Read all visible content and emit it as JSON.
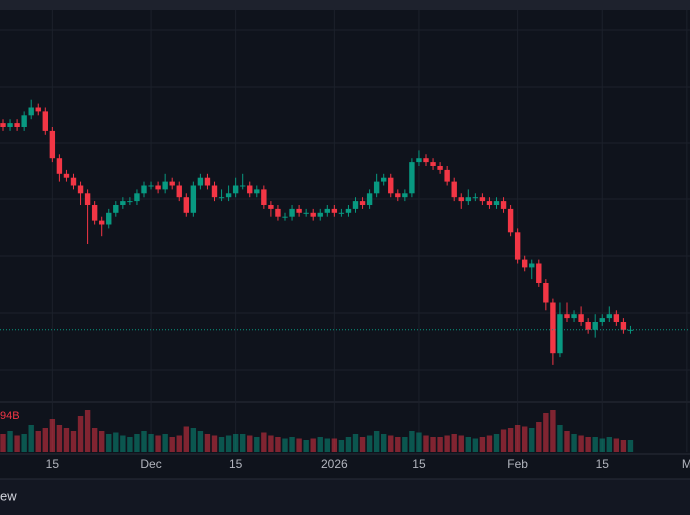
{
  "chart_data": {
    "type": "candlestick",
    "up_color": "#089981",
    "down_color": "#f23645",
    "ylim": [
      0,
      100
    ],
    "volume_lim": [
      0,
      150
    ],
    "volume_label": "94B",
    "footer_text": "ew",
    "categories": [
      null,
      null,
      null,
      null,
      null,
      null,
      null,
      "15",
      null,
      null,
      null,
      null,
      null,
      null,
      null,
      null,
      null,
      null,
      null,
      null,
      null,
      "Dec",
      null,
      null,
      null,
      null,
      null,
      null,
      null,
      null,
      null,
      null,
      null,
      "15",
      null,
      null,
      null,
      null,
      null,
      null,
      null,
      null,
      null,
      null,
      null,
      null,
      null,
      "2026",
      null,
      null,
      null,
      null,
      null,
      null,
      null,
      null,
      null,
      null,
      null,
      "15",
      null,
      null,
      null,
      null,
      null,
      null,
      null,
      null,
      null,
      null,
      null,
      null,
      null,
      "Feb",
      null,
      null,
      null,
      null,
      null,
      null,
      null,
      null,
      null,
      null,
      null,
      "15",
      null,
      null,
      null,
      null,
      null,
      null,
      null,
      null,
      null,
      null,
      null,
      "M"
    ],
    "open": [
      71,
      70,
      71,
      70,
      73,
      75,
      74,
      69,
      62,
      58,
      57,
      55,
      53,
      50,
      46,
      45,
      48,
      50,
      51,
      51,
      53,
      55,
      55,
      54,
      56,
      55,
      52,
      48,
      55,
      57,
      55,
      52,
      52,
      53,
      55,
      55,
      53,
      54,
      50,
      49,
      47,
      47,
      49,
      48,
      48,
      47,
      48,
      49,
      48,
      48,
      49,
      51,
      50,
      53,
      56,
      57,
      53,
      52,
      53,
      61,
      62,
      61,
      60,
      59,
      56,
      52,
      51,
      52,
      52,
      51,
      50,
      51,
      49,
      43,
      36,
      34,
      35,
      30,
      25,
      12,
      22,
      21,
      22,
      20,
      18,
      20,
      21,
      22,
      20,
      18,
      null,
      null,
      null,
      null,
      null,
      null,
      null,
      null
    ],
    "high": [
      72,
      72,
      72,
      74,
      77,
      76,
      75,
      70,
      63,
      59,
      58,
      56,
      54,
      51,
      47,
      49,
      51,
      52,
      52,
      54,
      56,
      56,
      56,
      58,
      57,
      56,
      53,
      56,
      58,
      58,
      56,
      54,
      55,
      57,
      58,
      56,
      55,
      55,
      51,
      50,
      48,
      50,
      50,
      49,
      49,
      49,
      50,
      50,
      49,
      50,
      52,
      52,
      54,
      58,
      58,
      58,
      54,
      54,
      62,
      64,
      63,
      62,
      61,
      60,
      57,
      53,
      54,
      53,
      53,
      52,
      52,
      52,
      50,
      44,
      37,
      36,
      36,
      31,
      26,
      25,
      25,
      23,
      24,
      21,
      22,
      22,
      24,
      23,
      21,
      19,
      null,
      null,
      null,
      null,
      null,
      null,
      null,
      null
    ],
    "low": [
      69,
      69,
      69,
      69,
      72,
      73,
      68,
      61,
      56,
      56,
      54,
      50,
      40,
      45,
      42,
      44,
      47,
      49,
      50,
      50,
      52,
      54,
      53,
      53,
      54,
      51,
      47,
      47,
      54,
      54,
      51,
      51,
      51,
      52,
      54,
      52,
      52,
      49,
      47,
      46,
      46,
      46,
      47,
      47,
      46,
      46,
      47,
      47,
      47,
      47,
      48,
      49,
      49,
      52,
      55,
      52,
      51,
      51,
      52,
      60,
      60,
      59,
      58,
      55,
      51,
      49,
      50,
      51,
      50,
      49,
      49,
      48,
      42,
      35,
      33,
      31,
      29,
      23,
      9,
      11,
      20,
      20,
      19,
      17,
      16,
      19,
      20,
      19,
      17,
      17,
      null,
      null,
      null,
      null,
      null,
      null,
      null,
      null
    ],
    "close": [
      70,
      71,
      70,
      73,
      75,
      74,
      69,
      62,
      58,
      57,
      55,
      53,
      50,
      46,
      45,
      48,
      50,
      51,
      51,
      53,
      55,
      55,
      54,
      56,
      55,
      52,
      48,
      55,
      57,
      55,
      52,
      52,
      53,
      55,
      55,
      53,
      54,
      50,
      49,
      47,
      47,
      49,
      48,
      48,
      47,
      48,
      49,
      48,
      48,
      49,
      51,
      50,
      53,
      56,
      57,
      53,
      52,
      53,
      61,
      62,
      61,
      60,
      59,
      56,
      52,
      51,
      52,
      52,
      51,
      50,
      51,
      49,
      43,
      36,
      34,
      35,
      30,
      25,
      12,
      22,
      21,
      22,
      20,
      18,
      20,
      21,
      22,
      20,
      18,
      18,
      null,
      null,
      null,
      null,
      null,
      null,
      null,
      null
    ],
    "volume": [
      60,
      70,
      55,
      60,
      90,
      70,
      80,
      110,
      90,
      80,
      70,
      120,
      140,
      80,
      70,
      60,
      65,
      55,
      50,
      60,
      70,
      60,
      55,
      60,
      50,
      55,
      85,
      80,
      70,
      60,
      55,
      50,
      55,
      60,
      60,
      55,
      50,
      65,
      55,
      50,
      45,
      50,
      45,
      40,
      45,
      50,
      45,
      45,
      40,
      50,
      60,
      50,
      55,
      70,
      60,
      55,
      50,
      50,
      70,
      65,
      55,
      50,
      50,
      55,
      60,
      55,
      50,
      45,
      50,
      55,
      60,
      75,
      80,
      90,
      85,
      80,
      100,
      130,
      140,
      90,
      70,
      60,
      55,
      50,
      50,
      45,
      50,
      45,
      40,
      40,
      null,
      null,
      null,
      null,
      null,
      null,
      null,
      null
    ]
  }
}
